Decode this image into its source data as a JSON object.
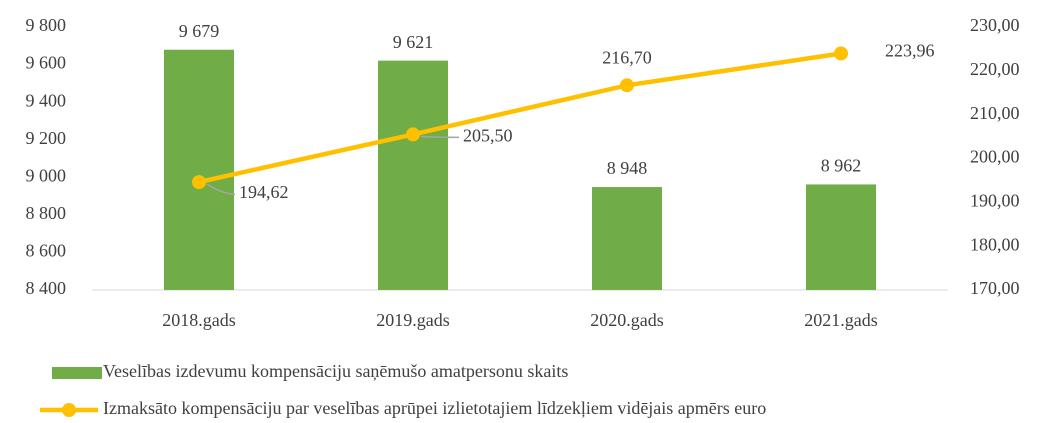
{
  "chart_data": {
    "type": "bar",
    "categories": [
      "2018.gads",
      "2019.gads",
      "2020.gads",
      "2021.gads"
    ],
    "series": [
      {
        "name": "Veselības izdevumu kompensāciju saņēmušo amatpersonu skaits",
        "type": "bar",
        "color": "#70ad47",
        "values": [
          9679,
          9621,
          8948,
          8962
        ],
        "value_labels": [
          "9 679",
          "9 621",
          "8 948",
          "8 962"
        ]
      },
      {
        "name": "Izmaksāto kompensāciju par veselības aprūpei  izlietotajiem līdzekļiem vidējais apmērs euro",
        "type": "line",
        "axis": "y2",
        "color": "#ffc000",
        "values": [
          194.62,
          205.5,
          216.7,
          223.96
        ],
        "value_labels": [
          "194,62",
          "205,50",
          "216,70",
          "223,96"
        ]
      }
    ],
    "ylim": [
      8400,
      9800
    ],
    "yticks": [
      {
        "value": 8400,
        "label": "8 400"
      },
      {
        "value": 8600,
        "label": "8 600"
      },
      {
        "value": 8800,
        "label": "8 800"
      },
      {
        "value": 9000,
        "label": "9 000"
      },
      {
        "value": 9200,
        "label": "9 200"
      },
      {
        "value": 9400,
        "label": "9 400"
      },
      {
        "value": 9600,
        "label": "9 600"
      },
      {
        "value": 9800,
        "label": "9 800"
      }
    ],
    "y2lim": [
      170,
      230
    ],
    "y2ticks": [
      {
        "value": 170,
        "label": "170,00"
      },
      {
        "value": 180,
        "label": "180,00"
      },
      {
        "value": 190,
        "label": "190,00"
      },
      {
        "value": 200,
        "label": "200,00"
      },
      {
        "value": 210,
        "label": "210,00"
      },
      {
        "value": 220,
        "label": "220,00"
      },
      {
        "value": 230,
        "label": "230,00"
      }
    ],
    "grid": false,
    "legend": "bottom"
  }
}
